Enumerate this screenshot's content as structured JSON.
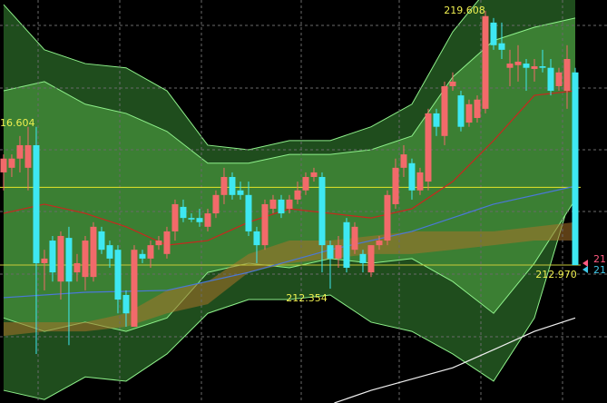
{
  "chart_data": {
    "type": "candlestick",
    "labels": [
      "16.604",
      "219.608",
      "212.354",
      "212.970",
      "21",
      "21"
    ],
    "ylim": [
      209.37,
      219.89
    ],
    "xlim": [
      -0.44,
      73.89
    ],
    "up_color": "#f26a6a",
    "down_color": "#3ee8f2",
    "open": [
      215.39,
      215.51,
      215.75,
      215.51,
      216.1,
      213.02,
      213.61,
      212.54,
      213.68,
      212.78,
      212.66,
      212.66,
      213.85,
      213.49,
      213.37,
      212.19,
      211.36,
      213.26,
      213.14,
      213.49,
      213.26,
      213.85,
      214.49,
      214.2,
      214.2,
      213.97,
      214.32,
      214.8,
      215.27,
      214.92,
      214.8,
      213.85,
      213.49,
      214.44,
      214.68,
      214.44,
      214.68,
      214.92,
      215.27,
      215.27,
      213.49,
      213.14,
      214.09,
      213.37,
      213.26,
      212.78,
      213.49,
      213.61,
      214.56,
      215.51,
      215.63,
      214.92,
      215.15,
      216.93,
      216.34,
      217.64,
      217.4,
      216.69,
      216.81,
      217.05,
      219.3,
      218.76,
      218.12,
      218.19,
      218.23,
      218.09,
      218.16,
      218.12,
      217.64,
      217.52,
      218.0
    ],
    "high": [
      215.86,
      215.86,
      216.34,
      216.58,
      216.58,
      213.37,
      213.73,
      213.85,
      213.97,
      213.26,
      213.73,
      214.09,
      213.97,
      213.61,
      213.49,
      212.31,
      213.49,
      213.37,
      213.61,
      213.73,
      213.97,
      214.68,
      214.68,
      214.32,
      214.44,
      214.44,
      214.92,
      215.51,
      215.39,
      215.15,
      215.15,
      213.97,
      214.68,
      214.8,
      214.8,
      214.8,
      215.15,
      215.39,
      215.51,
      215.39,
      213.61,
      213.73,
      214.2,
      214.09,
      213.37,
      213.49,
      213.73,
      214.92,
      215.75,
      216.1,
      215.75,
      215.51,
      217.05,
      217.05,
      217.76,
      218.0,
      217.52,
      217.29,
      217.4,
      219.608,
      219.42,
      219.3,
      218.59,
      218.71,
      218.35,
      218.35,
      218.59,
      218.35,
      218.12,
      218.71,
      218.12
    ],
    "low": [
      214.92,
      215.27,
      215.39,
      214.92,
      210.65,
      212.31,
      212.54,
      212.07,
      210.88,
      212.54,
      212.31,
      212.54,
      213.26,
      212.9,
      211.71,
      211.36,
      211.36,
      213.02,
      212.9,
      213.37,
      213.14,
      213.61,
      214.09,
      214.09,
      213.97,
      213.85,
      214.2,
      214.56,
      214.68,
      214.68,
      213.73,
      213.02,
      213.37,
      214.32,
      214.2,
      214.32,
      214.56,
      214.8,
      215.15,
      212.78,
      212.354,
      212.9,
      212.78,
      213.26,
      212.78,
      212.66,
      213.37,
      213.49,
      214.44,
      215.27,
      214.68,
      214.8,
      214.92,
      216.34,
      216.1,
      217.52,
      216.46,
      216.58,
      216.69,
      216.93,
      218.59,
      218.35,
      217.64,
      217.76,
      217.52,
      217.76,
      218.0,
      217.4,
      217.52,
      217.05,
      212.97
    ],
    "close": [
      215.75,
      215.75,
      216.1,
      216.1,
      213.02,
      213.14,
      212.78,
      213.73,
      212.54,
      213.02,
      213.61,
      213.97,
      213.37,
      213.14,
      212.07,
      211.71,
      213.37,
      213.14,
      213.49,
      213.61,
      213.85,
      214.56,
      214.2,
      214.16,
      214.09,
      214.32,
      214.8,
      215.27,
      214.8,
      214.8,
      213.85,
      213.49,
      214.56,
      214.68,
      214.32,
      214.68,
      214.92,
      215.27,
      215.39,
      213.49,
      213.14,
      213.49,
      212.9,
      213.97,
      213.02,
      213.49,
      213.61,
      214.8,
      215.51,
      215.86,
      214.92,
      215.39,
      216.93,
      216.58,
      217.64,
      217.76,
      216.58,
      217.17,
      217.29,
      219.47,
      218.71,
      218.59,
      218.23,
      218.28,
      218.12,
      218.16,
      218.12,
      217.52,
      218.0,
      218.35,
      212.97
    ],
    "band_x": [
      0,
      5,
      10,
      15,
      20,
      25,
      30,
      35,
      40,
      45,
      50,
      55,
      60,
      65,
      70
    ],
    "bands": [
      {
        "fill": "#1f4d1d",
        "stroke": "#8ef08a",
        "upper": [
          219.77,
          218.59,
          218.23,
          218.12,
          217.52,
          216.1,
          215.98,
          216.22,
          216.22,
          216.58,
          217.17,
          219.06,
          220.37,
          221.08,
          221.32
        ],
        "lower": [
          209.7,
          209.46,
          210.05,
          209.94,
          210.65,
          211.71,
          212.07,
          212.07,
          212.19,
          211.48,
          211.24,
          210.65,
          209.94,
          211.59,
          215.15
        ]
      },
      {
        "fill": "#3b7f33",
        "stroke": "#8ef08a",
        "upper": [
          217.52,
          217.76,
          217.17,
          216.93,
          216.46,
          215.63,
          215.63,
          215.86,
          215.86,
          215.98,
          216.34,
          217.88,
          218.83,
          219.18,
          219.42
        ],
        "lower": [
          211.59,
          211.24,
          211.48,
          211.24,
          211.59,
          212.78,
          213.02,
          212.9,
          213.14,
          213.02,
          213.14,
          212.54,
          211.71,
          213.02,
          214.68
        ]
      },
      {
        "fill": "rgba(170,115,40,0.55)",
        "stroke": "none",
        "upper": [
          211.48,
          211.48,
          211.48,
          211.71,
          212.31,
          212.54,
          213.26,
          213.61,
          213.61,
          213.73,
          213.85,
          213.85,
          213.85,
          213.97,
          214.09
        ],
        "lower": [
          211.12,
          211.24,
          211.24,
          211.36,
          211.71,
          211.95,
          212.78,
          213.02,
          213.14,
          213.26,
          213.26,
          213.37,
          213.49,
          213.61,
          213.61
        ]
      }
    ],
    "lines": [
      {
        "color": "#c8281e",
        "x": [
          0,
          5,
          10,
          15,
          20,
          25,
          30,
          35,
          40,
          45,
          50,
          55,
          60,
          65,
          70
        ],
        "values": [
          214.32,
          214.56,
          214.32,
          213.97,
          213.49,
          213.61,
          214.09,
          214.44,
          214.32,
          214.2,
          214.44,
          215.15,
          216.22,
          217.4,
          217.52
        ]
      },
      {
        "color": "#4a78d8",
        "x": [
          0,
          10,
          20,
          30,
          40,
          50,
          60,
          70
        ],
        "values": [
          212.12,
          212.26,
          212.31,
          212.78,
          213.37,
          213.85,
          214.56,
          215.03
        ]
      },
      {
        "color": "#f0f0f0",
        "x": [
          40.5,
          45,
          55,
          60,
          65,
          70
        ],
        "values": [
          209.37,
          209.7,
          210.29,
          210.76,
          211.24,
          211.59
        ]
      }
    ],
    "hlines": [
      {
        "value": 215.0,
        "color": "#e6e62a"
      },
      {
        "value": 212.97,
        "color": "#c8c83a"
      }
    ]
  }
}
